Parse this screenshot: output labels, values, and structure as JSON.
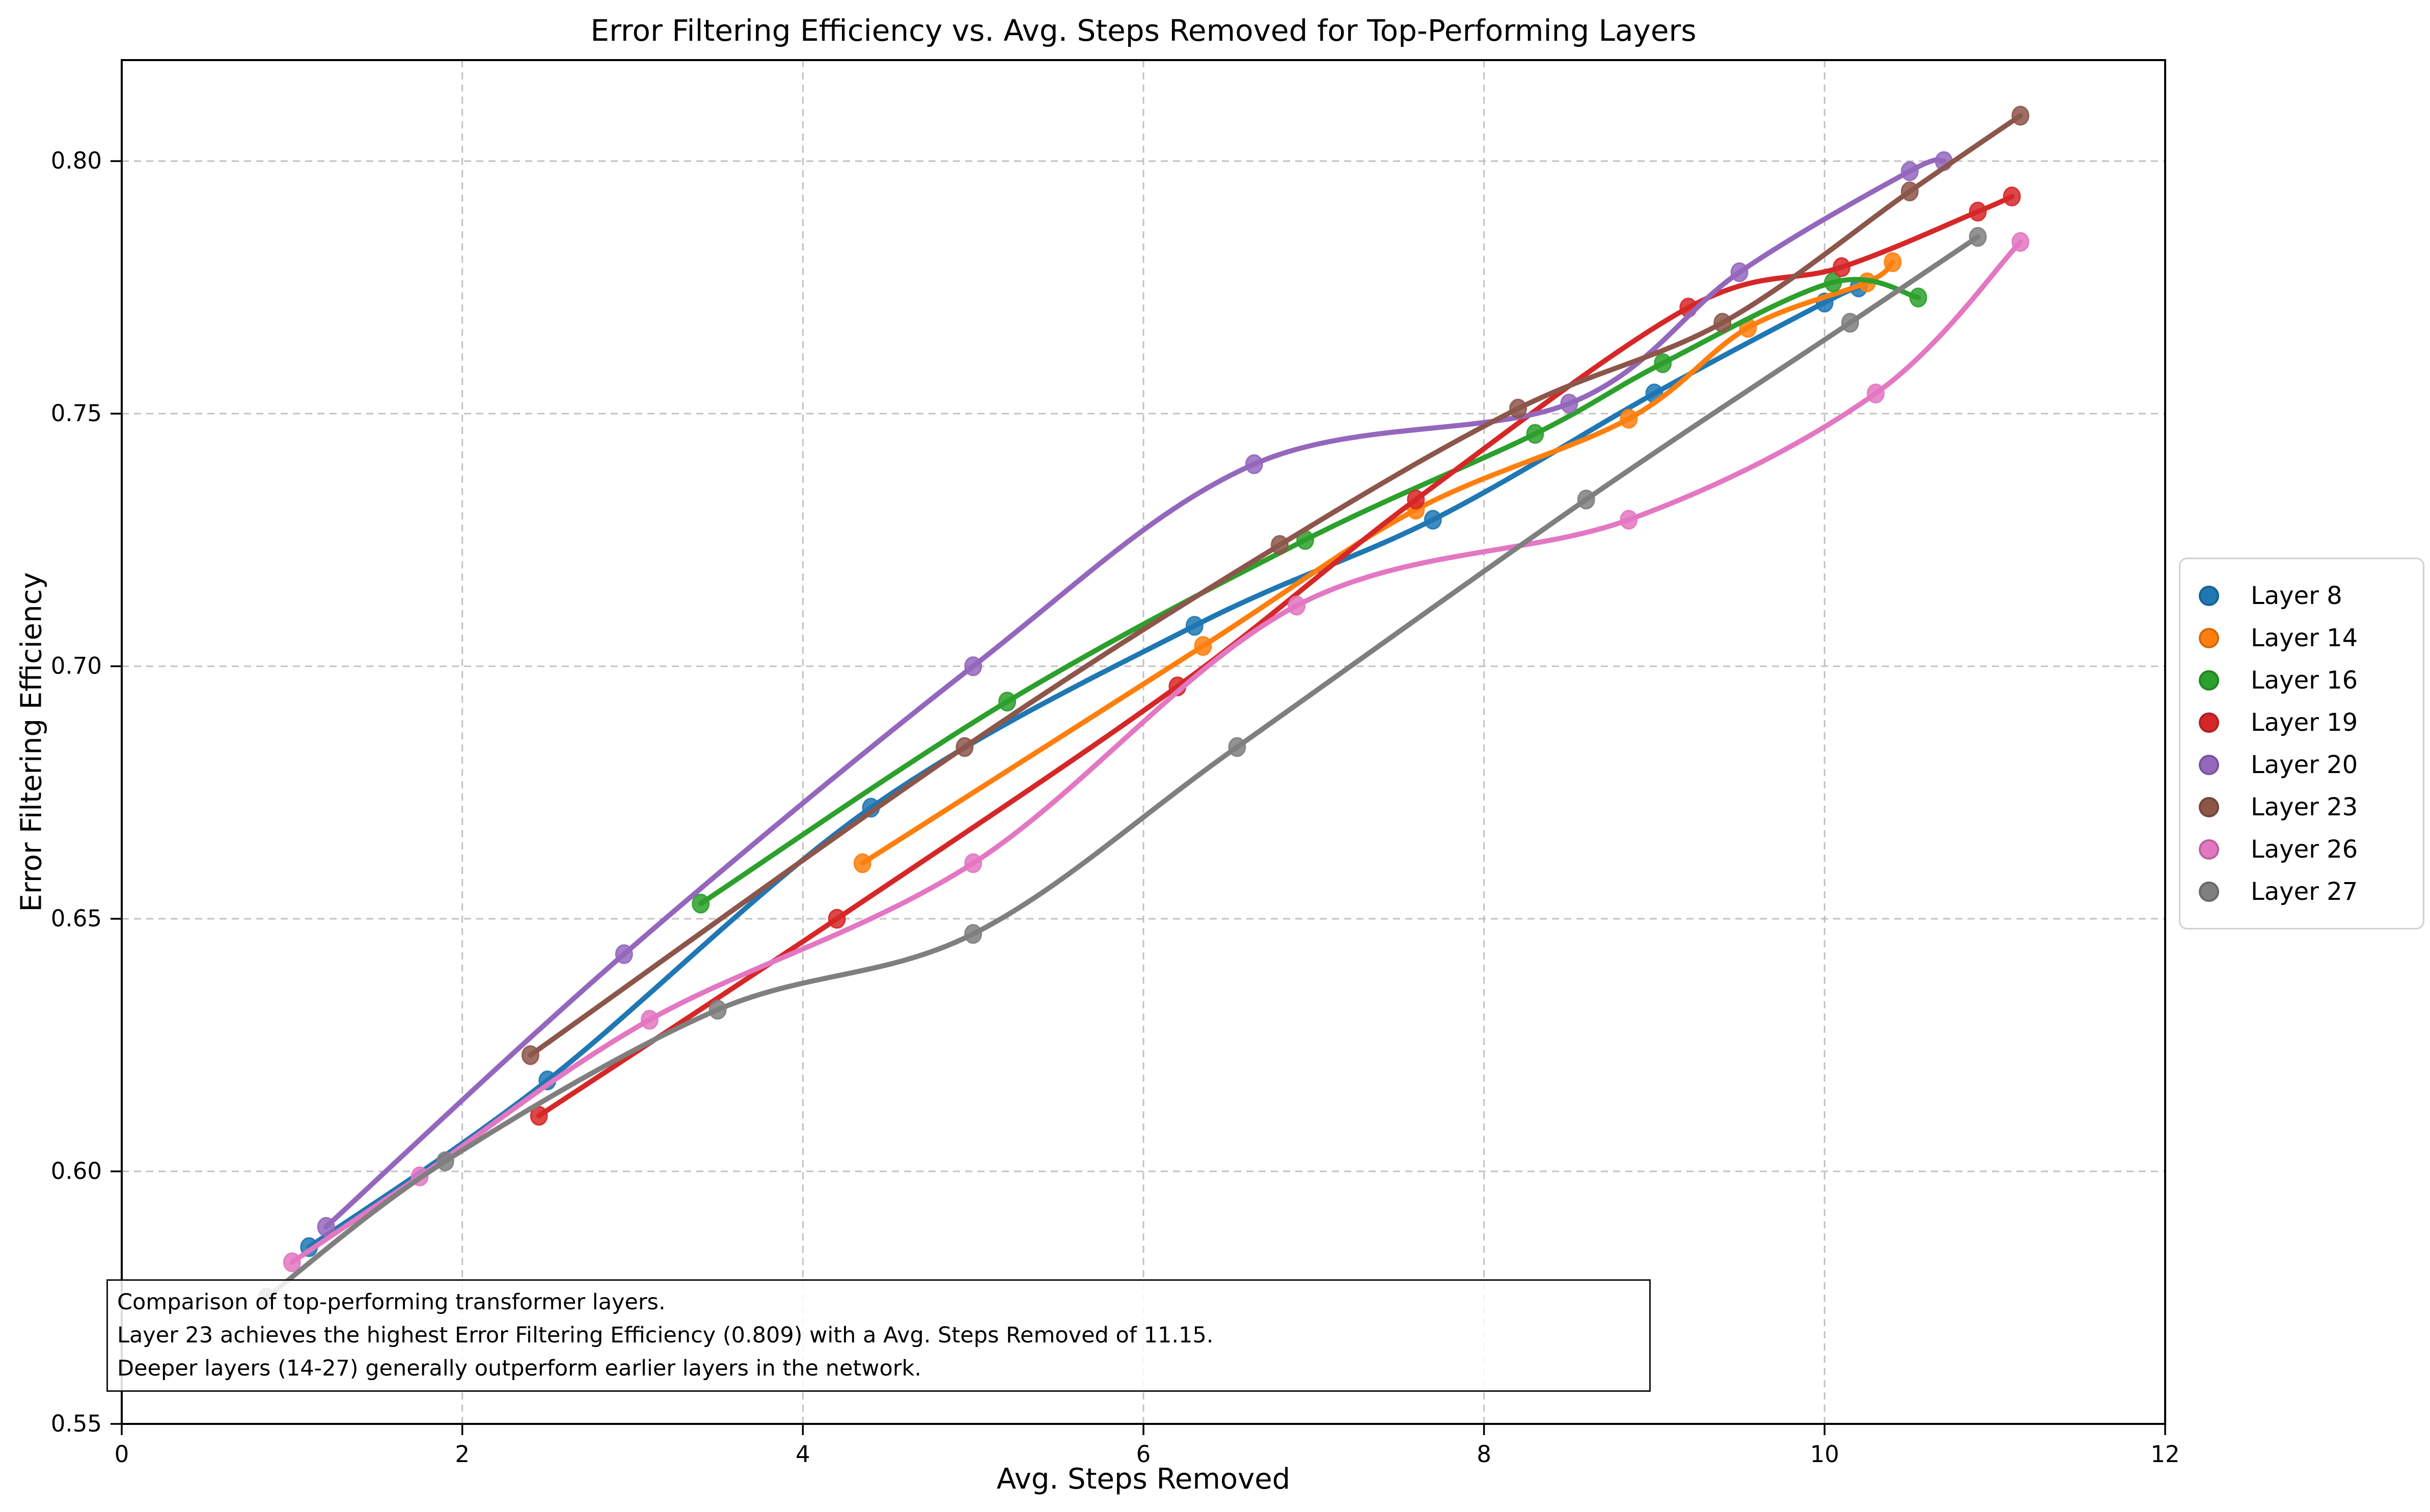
{
  "chart_data": {
    "type": "line",
    "title": "Error Filtering Efficiency vs. Avg. Steps Removed for Top-Performing Layers",
    "xlabel": "Avg. Steps Removed",
    "ylabel": "Error Filtering Efficiency",
    "xlim": [
      0,
      12
    ],
    "ylim": [
      0.55,
      0.82
    ],
    "xticks": {
      "values": [
        0,
        2,
        4,
        6,
        8,
        10,
        12
      ],
      "labels": [
        "0",
        "2",
        "4",
        "6",
        "8",
        "10",
        "12"
      ]
    },
    "yticks": {
      "values": [
        0.55,
        0.6,
        0.65,
        0.7,
        0.75,
        0.8
      ],
      "labels": [
        "0.55",
        "0.60",
        "0.65",
        "0.70",
        "0.75",
        "0.80"
      ]
    },
    "grid": true,
    "grid_color": "#b4b4b4",
    "legend_position": "right",
    "series": [
      {
        "name": "Layer 8",
        "color": "#1f77b4",
        "x": [
          1.1,
          2.5,
          4.4,
          6.3,
          7.7,
          9.0,
          10.0,
          10.2
        ],
        "y": [
          0.585,
          0.618,
          0.672,
          0.708,
          0.729,
          0.754,
          0.772,
          0.775
        ]
      },
      {
        "name": "Layer 14",
        "color": "#ff7f0e",
        "x": [
          4.35,
          6.35,
          7.6,
          8.85,
          9.55,
          10.25,
          10.4
        ],
        "y": [
          0.661,
          0.704,
          0.731,
          0.749,
          0.767,
          0.776,
          0.78
        ]
      },
      {
        "name": "Layer 16",
        "color": "#2ca02c",
        "x": [
          3.4,
          5.2,
          6.95,
          8.3,
          9.05,
          10.05,
          10.55
        ],
        "y": [
          0.653,
          0.693,
          0.725,
          0.746,
          0.76,
          0.776,
          0.773
        ]
      },
      {
        "name": "Layer 19",
        "color": "#d62728",
        "x": [
          2.45,
          4.2,
          6.2,
          7.6,
          9.2,
          10.1,
          10.9,
          11.1
        ],
        "y": [
          0.611,
          0.65,
          0.696,
          0.733,
          0.771,
          0.779,
          0.79,
          0.793
        ]
      },
      {
        "name": "Layer 20",
        "color": "#9467bd",
        "x": [
          1.2,
          2.95,
          5.0,
          6.65,
          8.5,
          9.5,
          10.5,
          10.7
        ],
        "y": [
          0.589,
          0.643,
          0.7,
          0.74,
          0.752,
          0.778,
          0.798,
          0.8
        ]
      },
      {
        "name": "Layer 23",
        "color": "#8c564b",
        "x": [
          2.4,
          4.95,
          6.8,
          8.2,
          9.4,
          10.5,
          11.15
        ],
        "y": [
          0.623,
          0.684,
          0.724,
          0.751,
          0.768,
          0.794,
          0.809
        ]
      },
      {
        "name": "Layer 26",
        "color": "#e377c2",
        "x": [
          1.0,
          1.75,
          3.1,
          5.0,
          6.9,
          8.85,
          10.3,
          11.15
        ],
        "y": [
          0.582,
          0.599,
          0.63,
          0.661,
          0.712,
          0.729,
          0.754,
          0.784
        ]
      },
      {
        "name": "Layer 27",
        "color": "#7f7f7f",
        "x": [
          0.85,
          1.9,
          3.5,
          5.0,
          6.55,
          8.6,
          10.15,
          10.9
        ],
        "y": [
          0.575,
          0.602,
          0.632,
          0.647,
          0.684,
          0.733,
          0.768,
          0.785
        ]
      }
    ],
    "annotation": {
      "lines": [
        "Comparison of top-performing transformer layers.",
        "Layer 23 achieves the highest Error Filtering Efficiency (0.809) with a Avg. Steps Removed of 11.15.",
        "Deeper layers (14-27) generally outperform earlier layers in the network."
      ]
    }
  }
}
